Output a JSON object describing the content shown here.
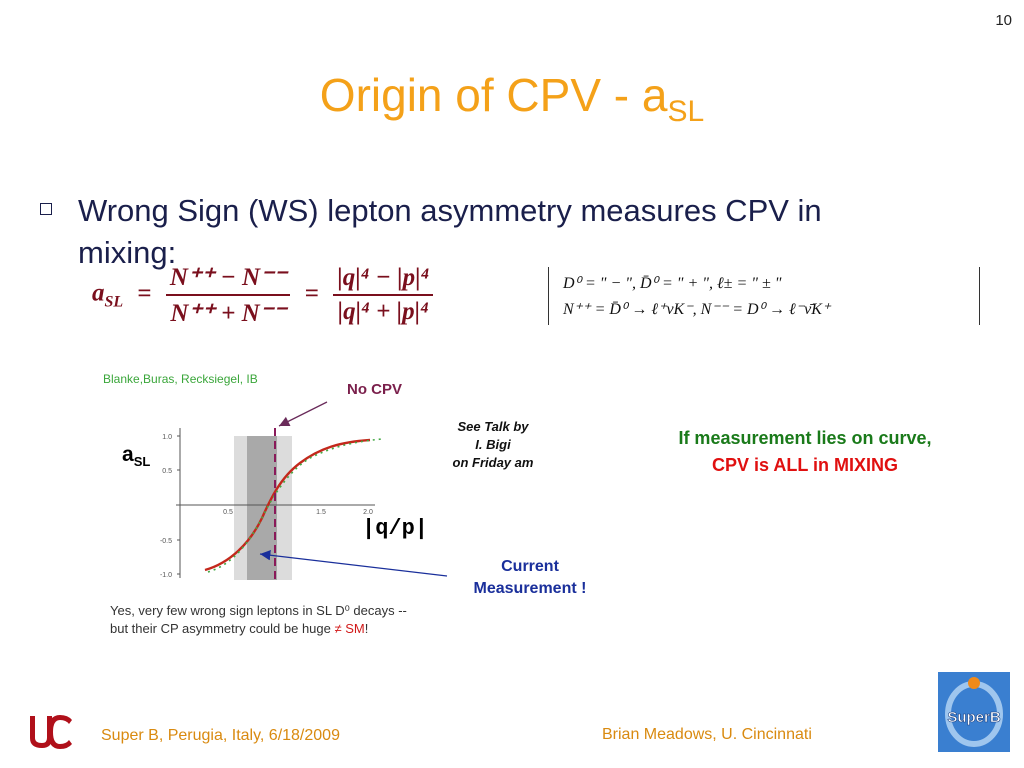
{
  "page_number": "10",
  "title": {
    "main": "Origin of CPV - a",
    "subscript": "SL"
  },
  "bullet": {
    "text": "Wrong Sign (WS) lepton asymmetry measures CPV in mixing:"
  },
  "equation": {
    "lhs_symbol": "a",
    "lhs_subscript": "SL",
    "equals": "=",
    "frac1_num": "N⁺⁺ − N⁻⁻",
    "frac1_den": "N⁺⁺ + N⁻⁻",
    "frac2_num": "|q|⁴ − |p|⁴",
    "frac2_den": "|q|⁴ + |p|⁴"
  },
  "definitions": {
    "line1": "D⁰   =  \" − \",  D̄⁰ = \" + \",  ℓ± = \" ± \"",
    "line2": "N⁺⁺  =  D̄⁰ → ℓ⁺νK⁻,  N⁻⁻ = D⁰ → ℓ⁻ν̄K⁺"
  },
  "plot": {
    "caption": "Blanke,Buras, Recksiegel, IB",
    "footnote_line1": "Yes, very few wrong sign leptons in SL D⁰ decays --",
    "footnote_line2a": "but their CP asymmetry could be huge ",
    "footnote_line2b": "≠  SM",
    "footnote_line2c": "!",
    "y_ticks": [
      "1.0",
      "0.5",
      "-0.5",
      "-1.0"
    ],
    "x_ticks": [
      "0.5",
      "1.5",
      "2.0"
    ],
    "x_axis_label": "|q/p|",
    "y_axis_label": "a_SL"
  },
  "annotations": {
    "asl_label": "a",
    "asl_sub": "SL",
    "qp_label": "|q/p|",
    "no_cpv": "No CPV",
    "see_talk": [
      "See Talk by",
      "I. Bigi",
      "on Friday am"
    ],
    "current_measurement": [
      "Current",
      "Measurement !"
    ]
  },
  "conclusion": {
    "part1": "If measurement lies on curve, ",
    "part2": "CPV is ALL in MIXING"
  },
  "footer": {
    "left": "Super B, Perugia, Italy, 6/18/2009",
    "right": "Brian Meadows, U. Cincinnati"
  },
  "logos": {
    "superb_text": "SuperB"
  },
  "colors": {
    "title": "#f4a119",
    "text": "#1a1f4b",
    "equation": "#7a0f1d",
    "green": "#1a7a1a",
    "red": "#e01010",
    "blue": "#1a2f9b",
    "footer": "#d98a10"
  }
}
